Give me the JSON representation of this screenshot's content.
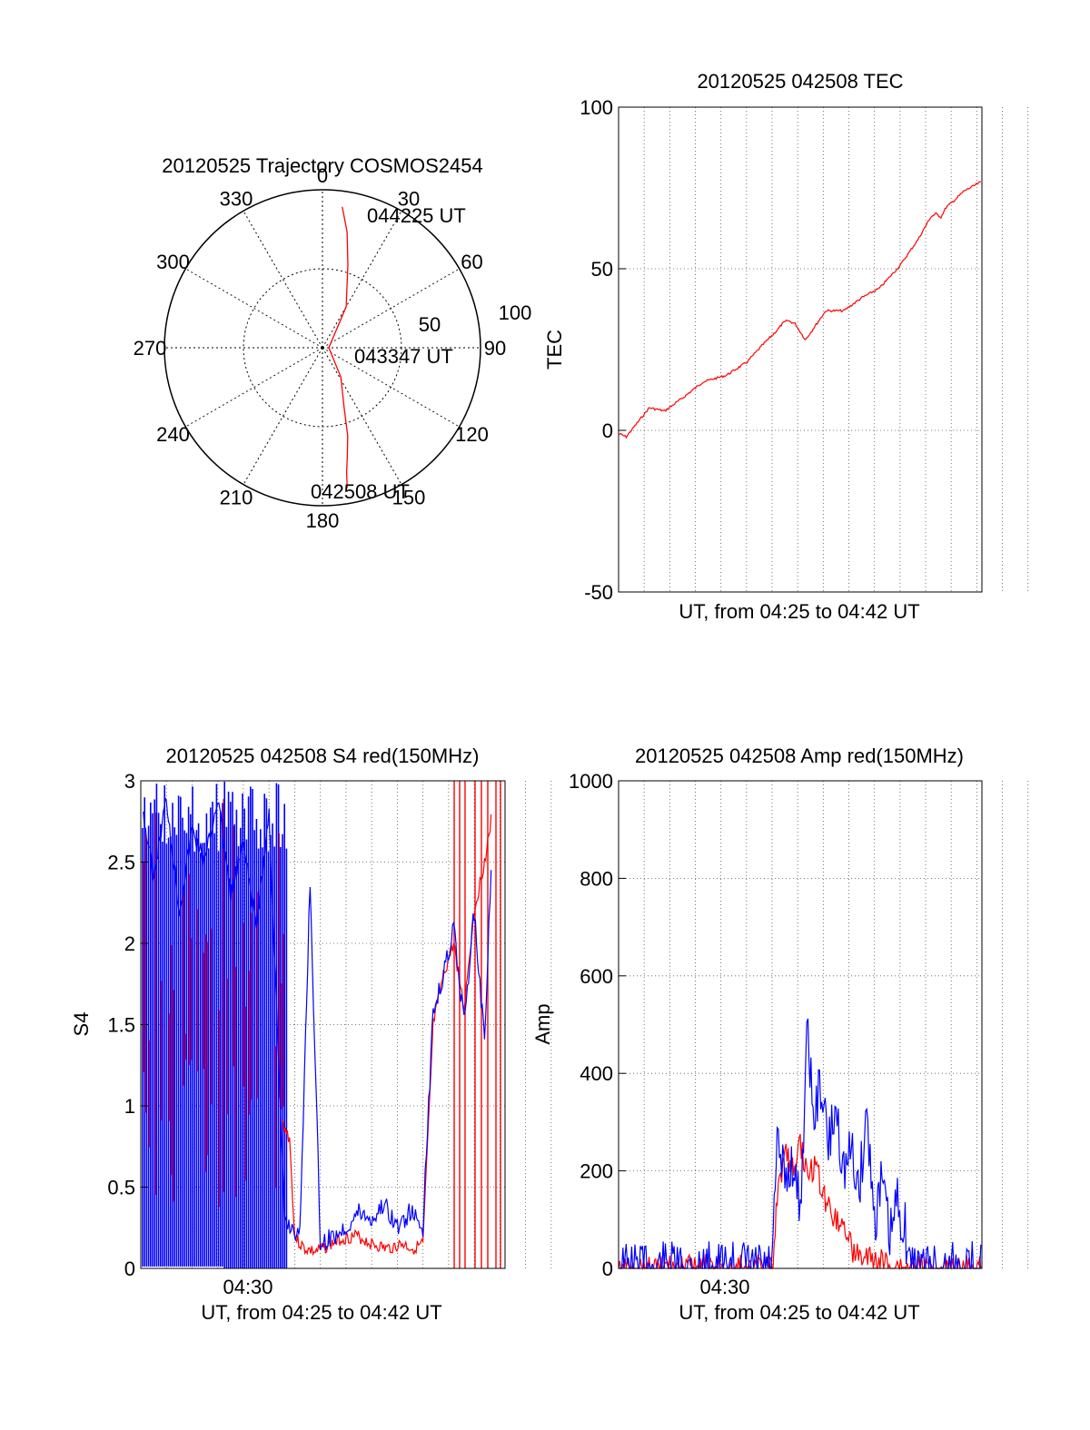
{
  "chart_data": [
    {
      "type": "polar",
      "title": "20120525 Trajectory COSMOS2454",
      "angle_ticks": [
        "0",
        "30",
        "60",
        "90",
        "120",
        "150",
        "180",
        "210",
        "240",
        "270",
        "300",
        "330"
      ],
      "radial_ticks": [
        "50",
        "100"
      ],
      "rlim": [
        0,
        100
      ],
      "grid": true,
      "series": [
        {
          "color": "#ff0000",
          "points": [
            [
              8,
              90
            ],
            [
              12,
              75
            ],
            [
              17,
              55
            ],
            [
              30,
              30
            ],
            [
              90,
              4
            ],
            [
              148,
              22
            ],
            [
              160,
              40
            ],
            [
              164,
              58
            ],
            [
              167,
              70
            ],
            [
              169,
              80
            ],
            [
              170,
              90
            ]
          ]
        }
      ],
      "annotations": [
        {
          "text": "044225 UT",
          "az": 8,
          "r": 90
        },
        {
          "text": "043347 UT",
          "az": 90,
          "r": 4
        },
        {
          "text": "042508 UT",
          "az": 170,
          "r": 90
        }
      ]
    },
    {
      "type": "line",
      "title": "20120525 042508 TEC",
      "xlabel": "UT, from 04:25 to 04:42 UT",
      "ylabel": "TEC",
      "ylim": [
        -50,
        100
      ],
      "yticks": [
        "-50",
        "0",
        "50",
        "100"
      ],
      "xtick_labels": [],
      "grid": true,
      "series": [
        {
          "color": "#ff0000",
          "x": [
            0,
            0.3,
            0.8,
            1.2,
            1.8,
            2.5,
            3.3,
            4.2,
            5.0,
            5.7,
            6.2,
            6.4,
            6.6,
            6.9,
            7.3,
            8.1,
            8.8,
            9.5,
            10.2,
            11.0,
            11.7,
            12.2,
            12.4,
            12.6,
            12.8,
            13.1,
            13.5,
            14.2
          ],
          "values": [
            -1,
            -2,
            3,
            7,
            6,
            10,
            15,
            17,
            21,
            27,
            31,
            33,
            34,
            33,
            28,
            37,
            37,
            41,
            44,
            51,
            59,
            66,
            67,
            66,
            69,
            71,
            74,
            77
          ]
        }
      ]
    },
    {
      "type": "line",
      "title": "20120525 042508 S4 red(150MHz)",
      "xlabel": "UT, from 04:25 to 04:42 UT",
      "ylabel": "S4",
      "ylim": [
        0,
        3
      ],
      "yticks": [
        "0",
        "0.5",
        "1",
        "1.5",
        "2",
        "2.5",
        "3"
      ],
      "xtick_labels": [
        "04:30"
      ],
      "grid": true,
      "series": [
        {
          "color": "#ff0000",
          "x": [
            5.5,
            5.8,
            6.0,
            6.2,
            6.4,
            6.8,
            7.2,
            7.8,
            8.4,
            9.0,
            9.6,
            10.2,
            10.6,
            11.0,
            11.4,
            11.8,
            12.2,
            12.6,
            13.0,
            13.4,
            13.7
          ],
          "values": [
            0.9,
            0.8,
            0.2,
            0.15,
            0.12,
            0.1,
            0.13,
            0.18,
            0.2,
            0.15,
            0.12,
            0.15,
            0.12,
            0.15,
            1.5,
            1.8,
            2.0,
            1.6,
            2.2,
            2.5,
            2.8
          ]
        },
        {
          "color": "#0000ff",
          "x": [
            0.1,
            0.5,
            1.0,
            1.5,
            2.0,
            2.5,
            3.0,
            3.5,
            4.0,
            4.5,
            5.0,
            5.6,
            5.9,
            6.2,
            6.6,
            7.0,
            7.5,
            8.0,
            8.5,
            9.0,
            9.5,
            10.0,
            10.5,
            11.0,
            11.4,
            11.8,
            12.2,
            12.6,
            13.0,
            13.4,
            13.7
          ],
          "values": [
            2.8,
            2.4,
            2.9,
            2.2,
            2.7,
            2.5,
            2.9,
            2.3,
            2.6,
            2.1,
            2.8,
            0.3,
            0.25,
            0.2,
            2.4,
            0.15,
            0.2,
            0.25,
            0.35,
            0.3,
            0.4,
            0.25,
            0.35,
            0.25,
            1.6,
            1.8,
            2.1,
            1.5,
            2.2,
            1.4,
            2.6
          ]
        }
      ]
    },
    {
      "type": "line",
      "title": "20120525 042508 Amp red(150MHz)",
      "xlabel": "UT, from 04:25 to 04:42 UT",
      "ylabel": "Amp",
      "ylim": [
        0,
        1000
      ],
      "yticks": [
        "0",
        "200",
        "400",
        "600",
        "800",
        "1000"
      ],
      "xtick_labels": [
        "04:30"
      ],
      "grid": true,
      "series": [
        {
          "color": "#ff0000",
          "x": [
            0,
            6.0,
            6.2,
            6.5,
            6.8,
            7.1,
            7.4,
            7.7,
            8.0,
            8.3,
            8.6,
            8.9,
            9.2,
            9.6,
            10.0,
            10.4,
            10.8,
            11.2,
            14.2
          ],
          "values": [
            0,
            0,
            150,
            240,
            200,
            260,
            180,
            220,
            150,
            120,
            100,
            80,
            30,
            20,
            15,
            10,
            5,
            0,
            0
          ]
        },
        {
          "color": "#0000ff",
          "x": [
            0,
            6.0,
            6.2,
            6.5,
            6.8,
            7.1,
            7.4,
            7.6,
            7.9,
            8.2,
            8.5,
            8.8,
            9.1,
            9.4,
            9.7,
            10.0,
            10.3,
            10.6,
            10.9,
            11.2,
            11.4,
            12.0,
            14.2
          ],
          "values": [
            0,
            0,
            250,
            180,
            220,
            120,
            510,
            300,
            380,
            250,
            330,
            200,
            240,
            160,
            320,
            100,
            180,
            60,
            140,
            80,
            0,
            0,
            0
          ]
        }
      ]
    }
  ]
}
